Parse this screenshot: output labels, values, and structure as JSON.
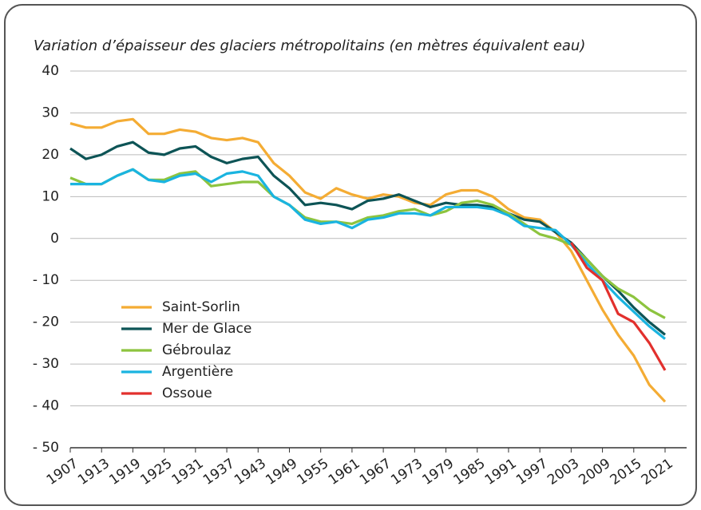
{
  "chart_data": {
    "type": "line",
    "title": "Variation d’épaisseur des glaciers métropolitains (en mètres équivalent eau)",
    "x": [
      1907,
      1910,
      1913,
      1916,
      1919,
      1922,
      1925,
      1928,
      1931,
      1934,
      1937,
      1940,
      1943,
      1946,
      1949,
      1952,
      1955,
      1958,
      1961,
      1964,
      1967,
      1970,
      1973,
      1976,
      1979,
      1982,
      1985,
      1988,
      1991,
      1994,
      1997,
      2000,
      2003,
      2006,
      2009,
      2012,
      2015,
      2018,
      2021
    ],
    "series": [
      {
        "name": "Saint-Sorlin",
        "color": "#f4ac34",
        "values": [
          27.5,
          26.5,
          26.5,
          28,
          28.5,
          25,
          25,
          26,
          25.5,
          24,
          23.5,
          24,
          23,
          18,
          15,
          11,
          9.5,
          12,
          10.5,
          9.5,
          10.5,
          10,
          8.5,
          8,
          10.5,
          11.5,
          11.5,
          10,
          7,
          5,
          4.5,
          1.5,
          -3,
          -10,
          -17,
          -23,
          -28,
          -35,
          -39
        ]
      },
      {
        "name": "Mer de Glace",
        "color": "#0d5456",
        "values": [
          21.5,
          19,
          20,
          22,
          23,
          20.5,
          20,
          21.5,
          22,
          19.5,
          18,
          19,
          19.5,
          15,
          12,
          8,
          8.5,
          8,
          7,
          9,
          9.5,
          10.5,
          9,
          7.5,
          8.5,
          8,
          8,
          7.5,
          6,
          4.5,
          4,
          1.5,
          -1,
          -5,
          -9,
          -12.5,
          -16.5,
          -20,
          -23
        ]
      },
      {
        "name": "Gébroulaz",
        "color": "#8dc43f",
        "values": [
          14.5,
          13,
          13,
          15,
          16.5,
          14,
          14,
          15.5,
          16,
          12.5,
          13,
          13.5,
          13.5,
          10,
          8,
          5,
          4,
          4,
          3.5,
          5,
          5.5,
          6.5,
          7,
          5.5,
          6.5,
          8.5,
          9,
          8,
          6,
          3.5,
          1,
          0,
          -1.5,
          -5,
          -9,
          -12,
          -14,
          -17,
          -19
        ]
      },
      {
        "name": "Argentière",
        "color": "#1ab4e0",
        "values": [
          13,
          13,
          13,
          15,
          16.5,
          14,
          13.5,
          15,
          15.5,
          13.5,
          15.5,
          16,
          15,
          10,
          8,
          4.5,
          3.5,
          4,
          2.5,
          4.5,
          5,
          6,
          6,
          5.5,
          7.5,
          7.5,
          7.5,
          7,
          5.5,
          3,
          2.5,
          2,
          -1.5,
          -6,
          -10,
          -14,
          -17.5,
          -21,
          -24
        ]
      },
      {
        "name": "Ossoue",
        "color": "#e2302d",
        "values": [
          null,
          null,
          null,
          null,
          null,
          null,
          null,
          null,
          null,
          null,
          null,
          null,
          null,
          null,
          null,
          null,
          null,
          null,
          null,
          null,
          null,
          null,
          null,
          null,
          null,
          null,
          null,
          null,
          null,
          null,
          null,
          null,
          -1,
          -7,
          -10,
          -18,
          -20,
          -25,
          -31.5
        ]
      }
    ],
    "xlim": [
      1907,
      2021
    ],
    "xticks": [
      1907,
      1913,
      1919,
      1925,
      1931,
      1937,
      1943,
      1949,
      1955,
      1961,
      1967,
      1973,
      1979,
      1985,
      1991,
      1997,
      2003,
      2009,
      2015,
      2021
    ],
    "ylim": [
      -50,
      40
    ],
    "yticks": [
      40,
      30,
      20,
      10,
      0,
      {
        "value": -10,
        "label": "- 10"
      },
      {
        "value": -20,
        "label": "- 20"
      },
      {
        "value": -30,
        "label": "- 30"
      },
      {
        "value": -40,
        "label": "- 40"
      },
      {
        "value": -50,
        "label": "- 50"
      }
    ],
    "grid": true,
    "legend": "lower left"
  }
}
